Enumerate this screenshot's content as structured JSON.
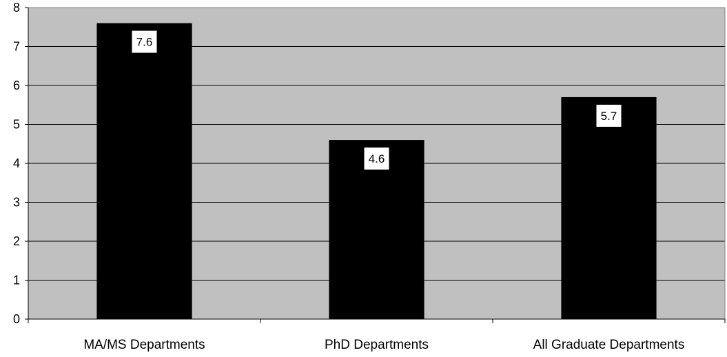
{
  "chart_data": {
    "type": "bar",
    "title": "",
    "xlabel": "",
    "ylabel": "",
    "categories": [
      "MA/MS Departments",
      "PhD Departments",
      "All Graduate Departments"
    ],
    "values": [
      7.6,
      4.6,
      5.7
    ],
    "data_labels": [
      "7.6",
      "4.6",
      "5.7"
    ],
    "ylim": [
      0,
      8
    ],
    "yticks": [
      "0",
      "1",
      "2",
      "3",
      "4",
      "5",
      "6",
      "7",
      "8"
    ],
    "grid": true,
    "legend": "none",
    "colors": {
      "plot_background": "#c0c0c0",
      "bar": "#000000",
      "gridline": "#000000",
      "data_label_box": "#ffffff"
    }
  }
}
